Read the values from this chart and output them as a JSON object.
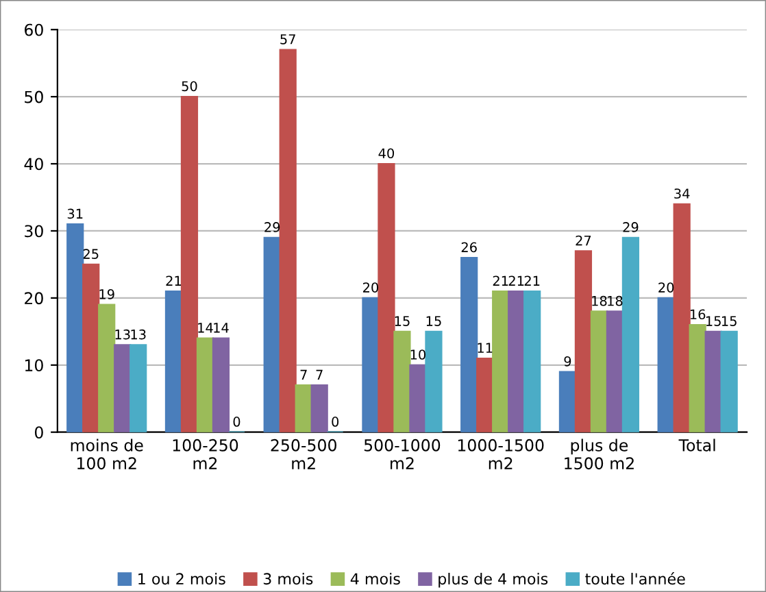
{
  "chart_data": {
    "type": "bar",
    "categories": [
      "moins de\n100 m2",
      "100-250\nm2",
      "250-500\nm2",
      "500-1000\nm2",
      "1000-1500\nm2",
      "plus de\n1500 m2",
      "Total"
    ],
    "series": [
      {
        "name": "1 ou 2 mois",
        "color": "#4a7ebb",
        "values": [
          31,
          21,
          29,
          20,
          26,
          9,
          20
        ]
      },
      {
        "name": "3 mois",
        "color": "#c0504d",
        "values": [
          25,
          50,
          57,
          40,
          11,
          27,
          34
        ]
      },
      {
        "name": "4 mois",
        "color": "#9bbb59",
        "values": [
          19,
          14,
          7,
          15,
          21,
          18,
          16
        ]
      },
      {
        "name": "plus de 4 mois",
        "color": "#8064a2",
        "values": [
          13,
          14,
          7,
          10,
          21,
          18,
          15
        ]
      },
      {
        "name": "toute l'année",
        "color": "#4bacc6",
        "values": [
          13,
          0,
          0,
          15,
          21,
          29,
          15
        ]
      }
    ],
    "ylim": [
      0,
      60
    ],
    "yticks": [
      0,
      10,
      20,
      30,
      40,
      50,
      60
    ],
    "grid": "y",
    "legend": "bottom",
    "data_labels": true
  }
}
